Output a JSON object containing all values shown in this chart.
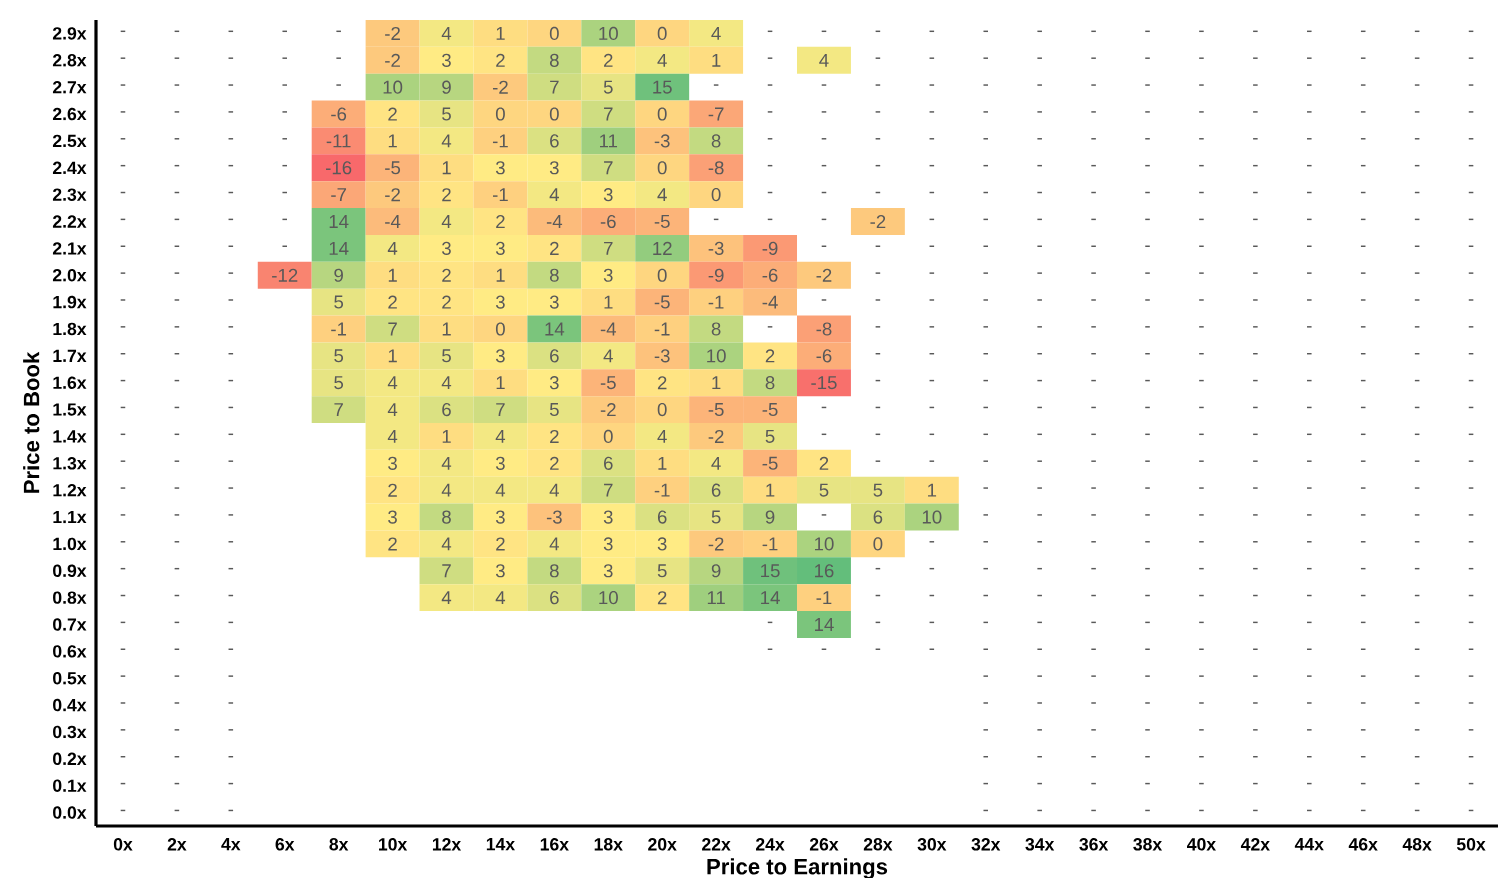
{
  "chart_data": {
    "type": "heatmap",
    "xlabel": "Price to Earnings",
    "ylabel": "Price to Book",
    "categories": [
      "0x",
      "2x",
      "4x",
      "6x",
      "8x",
      "10x",
      "12x",
      "14x",
      "16x",
      "18x",
      "20x",
      "22x",
      "24x",
      "26x",
      "28x",
      "30x",
      "32x",
      "34x",
      "36x",
      "38x",
      "40x",
      "42x",
      "44x",
      "46x",
      "48x",
      "50x"
    ],
    "y_categories": [
      "2.9x",
      "2.8x",
      "2.7x",
      "2.6x",
      "2.5x",
      "2.4x",
      "2.3x",
      "2.2x",
      "2.1x",
      "2.0x",
      "1.9x",
      "1.8x",
      "1.7x",
      "1.6x",
      "1.5x",
      "1.4x",
      "1.3x",
      "1.2x",
      "1.1x",
      "1.0x",
      "0.9x",
      "0.8x",
      "0.7x",
      "0.6x",
      "0.5x",
      "0.4x",
      "0.3x",
      "0.2x",
      "0.1x",
      "0.0x"
    ],
    "cells": [
      [
        null,
        null,
        null,
        null,
        null,
        -2,
        4,
        1,
        0,
        10,
        0,
        4,
        null,
        null,
        null,
        null,
        null,
        null,
        null,
        null,
        null,
        null,
        null,
        null,
        null,
        null
      ],
      [
        null,
        null,
        null,
        null,
        null,
        -2,
        3,
        2,
        8,
        2,
        4,
        1,
        null,
        4,
        null,
        null,
        null,
        null,
        null,
        null,
        null,
        null,
        null,
        null,
        null,
        null
      ],
      [
        null,
        null,
        null,
        null,
        null,
        10,
        9,
        -2,
        7,
        5,
        15,
        null,
        null,
        null,
        null,
        null,
        null,
        null,
        null,
        null,
        null,
        null,
        null,
        null,
        null,
        null
      ],
      [
        null,
        null,
        null,
        null,
        -6,
        2,
        5,
        0,
        0,
        7,
        0,
        -7,
        null,
        null,
        null,
        null,
        null,
        null,
        null,
        null,
        null,
        null,
        null,
        null,
        null,
        null
      ],
      [
        null,
        null,
        null,
        null,
        -11,
        1,
        4,
        -1,
        6,
        11,
        -3,
        8,
        null,
        null,
        null,
        null,
        null,
        null,
        null,
        null,
        null,
        null,
        null,
        null,
        null,
        null
      ],
      [
        null,
        null,
        null,
        null,
        -16,
        -5,
        1,
        3,
        3,
        7,
        0,
        -8,
        null,
        null,
        null,
        null,
        null,
        null,
        null,
        null,
        null,
        null,
        null,
        null,
        null,
        null
      ],
      [
        null,
        null,
        null,
        null,
        -7,
        -2,
        2,
        -1,
        4,
        3,
        4,
        0,
        null,
        null,
        null,
        null,
        null,
        null,
        null,
        null,
        null,
        null,
        null,
        null,
        null,
        null
      ],
      [
        null,
        null,
        null,
        null,
        14,
        -4,
        4,
        2,
        -4,
        -6,
        -5,
        null,
        null,
        null,
        -2,
        null,
        null,
        null,
        null,
        null,
        null,
        null,
        null,
        null,
        null,
        null
      ],
      [
        null,
        null,
        null,
        null,
        14,
        4,
        3,
        3,
        2,
        7,
        12,
        -3,
        -9,
        null,
        null,
        null,
        null,
        null,
        null,
        null,
        null,
        null,
        null,
        null,
        null,
        null
      ],
      [
        null,
        null,
        null,
        -12,
        9,
        1,
        2,
        1,
        8,
        3,
        0,
        -9,
        -6,
        -2,
        null,
        null,
        null,
        null,
        null,
        null,
        null,
        null,
        null,
        null,
        null,
        null
      ],
      [
        null,
        null,
        null,
        null,
        5,
        2,
        2,
        3,
        3,
        1,
        -5,
        -1,
        -4,
        null,
        null,
        null,
        null,
        null,
        null,
        null,
        null,
        null,
        null,
        null,
        null,
        null
      ],
      [
        null,
        null,
        null,
        null,
        -1,
        7,
        1,
        0,
        14,
        -4,
        -1,
        8,
        null,
        -8,
        null,
        null,
        null,
        null,
        null,
        null,
        null,
        null,
        null,
        null,
        null,
        null
      ],
      [
        null,
        null,
        null,
        null,
        5,
        1,
        5,
        3,
        6,
        4,
        -3,
        10,
        2,
        -6,
        null,
        null,
        null,
        null,
        null,
        null,
        null,
        null,
        null,
        null,
        null,
        null
      ],
      [
        null,
        null,
        null,
        null,
        5,
        4,
        4,
        1,
        3,
        -5,
        2,
        1,
        8,
        -15,
        null,
        null,
        null,
        null,
        null,
        null,
        null,
        null,
        null,
        null,
        null,
        null
      ],
      [
        null,
        null,
        null,
        null,
        7,
        4,
        6,
        7,
        5,
        -2,
        0,
        -5,
        -5,
        null,
        null,
        null,
        null,
        null,
        null,
        null,
        null,
        null,
        null,
        null,
        null,
        null
      ],
      [
        null,
        null,
        null,
        null,
        null,
        4,
        1,
        4,
        2,
        0,
        4,
        -2,
        5,
        null,
        null,
        null,
        null,
        null,
        null,
        null,
        null,
        null,
        null,
        null,
        null,
        null
      ],
      [
        null,
        null,
        null,
        null,
        null,
        3,
        4,
        3,
        2,
        6,
        1,
        4,
        -5,
        2,
        null,
        null,
        null,
        null,
        null,
        null,
        null,
        null,
        null,
        null,
        null,
        null
      ],
      [
        null,
        null,
        null,
        null,
        null,
        2,
        4,
        4,
        4,
        7,
        -1,
        6,
        1,
        5,
        5,
        1,
        null,
        null,
        null,
        null,
        null,
        null,
        null,
        null,
        null,
        null
      ],
      [
        null,
        null,
        null,
        null,
        null,
        3,
        8,
        3,
        -3,
        3,
        6,
        5,
        9,
        null,
        6,
        10,
        null,
        null,
        null,
        null,
        null,
        null,
        null,
        null,
        null,
        null
      ],
      [
        null,
        null,
        null,
        null,
        null,
        2,
        4,
        2,
        4,
        3,
        3,
        -2,
        -1,
        10,
        0,
        null,
        null,
        null,
        null,
        null,
        null,
        null,
        null,
        null,
        null,
        null
      ],
      [
        null,
        null,
        null,
        null,
        null,
        null,
        7,
        3,
        8,
        3,
        5,
        9,
        15,
        16,
        null,
        null,
        null,
        null,
        null,
        null,
        null,
        null,
        null,
        null,
        null,
        null
      ],
      [
        null,
        null,
        null,
        null,
        null,
        null,
        4,
        4,
        6,
        10,
        2,
        11,
        14,
        -1,
        null,
        null,
        null,
        null,
        null,
        null,
        null,
        null,
        null,
        null,
        null,
        null
      ],
      [
        null,
        null,
        null,
        null,
        null,
        null,
        null,
        null,
        null,
        null,
        null,
        null,
        null,
        14,
        null,
        null,
        null,
        null,
        null,
        null,
        null,
        null,
        null,
        null,
        null,
        null
      ],
      [
        null,
        null,
        null,
        null,
        null,
        null,
        null,
        null,
        null,
        null,
        null,
        null,
        null,
        null,
        null,
        null,
        null,
        null,
        null,
        null,
        null,
        null,
        null,
        null,
        null,
        null
      ],
      [
        null,
        null,
        null,
        null,
        null,
        null,
        null,
        null,
        null,
        null,
        null,
        null,
        null,
        null,
        null,
        null,
        null,
        null,
        null,
        null,
        null,
        null,
        null,
        null,
        null,
        null
      ],
      [
        null,
        null,
        null,
        null,
        null,
        null,
        null,
        null,
        null,
        null,
        null,
        null,
        null,
        null,
        null,
        null,
        null,
        null,
        null,
        null,
        null,
        null,
        null,
        null,
        null,
        null
      ],
      [
        null,
        null,
        null,
        null,
        null,
        null,
        null,
        null,
        null,
        null,
        null,
        null,
        null,
        null,
        null,
        null,
        null,
        null,
        null,
        null,
        null,
        null,
        null,
        null,
        null,
        null
      ],
      [
        null,
        null,
        null,
        null,
        null,
        null,
        null,
        null,
        null,
        null,
        null,
        null,
        null,
        null,
        null,
        null,
        null,
        null,
        null,
        null,
        null,
        null,
        null,
        null,
        null,
        null
      ],
      [
        null,
        null,
        null,
        null,
        null,
        null,
        null,
        null,
        null,
        null,
        null,
        null,
        null,
        null,
        null,
        null,
        null,
        null,
        null,
        null,
        null,
        null,
        null,
        null,
        null,
        null
      ],
      [
        null,
        null,
        null,
        null,
        null,
        null,
        null,
        null,
        null,
        null,
        null,
        null,
        null,
        null,
        null,
        null,
        null,
        null,
        null,
        null,
        null,
        null,
        null,
        null,
        null,
        null
      ]
    ],
    "cell_labels": [
      [
        "-",
        "-",
        "-",
        "-",
        "-",
        "-2",
        "4",
        "1",
        "0",
        "10",
        "0",
        "4",
        "-",
        "-",
        "-",
        "-",
        "-",
        "-",
        "-",
        "-",
        "-",
        "-",
        "-",
        "-",
        "-",
        "-"
      ],
      [
        "-",
        "-",
        "-",
        "-",
        "-",
        "-2",
        "3",
        "2",
        "8",
        "2",
        "4",
        "1",
        "-",
        "4",
        "-",
        "-",
        "-",
        "-",
        "-",
        "-",
        "-",
        "-",
        "-",
        "-",
        "-",
        "-"
      ],
      [
        "-",
        "-",
        "-",
        "-",
        "-",
        "10",
        "9",
        "-2",
        "7",
        "5",
        "15",
        "-",
        "-",
        "-",
        "-",
        "-",
        "-",
        "-",
        "-",
        "-",
        "-",
        "-",
        "-",
        "-",
        "-",
        "-"
      ],
      [
        "-",
        "-",
        "-",
        "-",
        "-6",
        "2",
        "5",
        "0",
        "0",
        "7",
        "0",
        "-7",
        "-",
        "-",
        "-",
        "-",
        "-",
        "-",
        "-",
        "-",
        "-",
        "-",
        "-",
        "-",
        "-",
        "-"
      ],
      [
        "-",
        "-",
        "-",
        "-",
        "-11",
        "1",
        "4",
        "-1",
        "6",
        "11",
        "-3",
        "8",
        "-",
        "-",
        "-",
        "-",
        "-",
        "-",
        "-",
        "-",
        "-",
        "-",
        "-",
        "-",
        "-",
        "-"
      ],
      [
        "-",
        "-",
        "-",
        "-",
        "-16",
        "-5",
        "1",
        "3",
        "3",
        "7",
        "0",
        "-8",
        "-",
        "-",
        "-",
        "-",
        "-",
        "-",
        "-",
        "-",
        "-",
        "-",
        "-",
        "-",
        "-",
        "-"
      ],
      [
        "-",
        "-",
        "-",
        "-",
        "-7",
        "-2",
        "2",
        "-1",
        "4",
        "3",
        "4",
        "0",
        "-",
        "-",
        "-",
        "-",
        "-",
        "-",
        "-",
        "-",
        "-",
        "-",
        "-",
        "-",
        "-",
        "-"
      ],
      [
        "-",
        "-",
        "-",
        "-",
        "14",
        "-4",
        "4",
        "2",
        "-4",
        "-6",
        "-5",
        "-",
        "-",
        "-",
        "-2",
        "-",
        "-",
        "-",
        "-",
        "-",
        "-",
        "-",
        "-",
        "-",
        "-",
        "-"
      ],
      [
        "-",
        "-",
        "-",
        "-",
        "14",
        "4",
        "3",
        "3",
        "2",
        "7",
        "12",
        "-3",
        "-9",
        "-",
        "-",
        "-",
        "-",
        "-",
        "-",
        "-",
        "-",
        "-",
        "-",
        "-",
        "-",
        "-"
      ],
      [
        "-",
        "-",
        "-",
        "-12",
        "9",
        "1",
        "2",
        "1",
        "8",
        "3",
        "0",
        "-9",
        "-6",
        "-2",
        "-",
        "-",
        "-",
        "-",
        "-",
        "-",
        "-",
        "-",
        "-",
        "-",
        "-",
        "-"
      ],
      [
        "-",
        "-",
        "-",
        null,
        "5",
        "2",
        "2",
        "3",
        "3",
        "1",
        "-5",
        "-1",
        "-4",
        "-",
        "-",
        "-",
        "-",
        "-",
        "-",
        "-",
        "-",
        "-",
        "-",
        "-",
        "-",
        "-"
      ],
      [
        "-",
        "-",
        "-",
        null,
        "-1",
        "7",
        "1",
        "0",
        "14",
        "-4",
        "-1",
        "8",
        "-",
        "-8",
        "-",
        "-",
        "-",
        "-",
        "-",
        "-",
        "-",
        "-",
        "-",
        "-",
        "-",
        "-"
      ],
      [
        "-",
        "-",
        "-",
        null,
        "5",
        "1",
        "5",
        "3",
        "6",
        "4",
        "-3",
        "10",
        "2",
        "-6",
        "-",
        "-",
        "-",
        "-",
        "-",
        "-",
        "-",
        "-",
        "-",
        "-",
        "-",
        "-"
      ],
      [
        "-",
        "-",
        "-",
        null,
        "5",
        "4",
        "4",
        "1",
        "3",
        "-5",
        "2",
        "1",
        "8",
        "-15",
        "-",
        "-",
        "-",
        "-",
        "-",
        "-",
        "-",
        "-",
        "-",
        "-",
        "-",
        "-"
      ],
      [
        "-",
        "-",
        "-",
        null,
        "7",
        "4",
        "6",
        "7",
        "5",
        "-2",
        "0",
        "-5",
        "-5",
        "-",
        "-",
        "-",
        "-",
        "-",
        "-",
        "-",
        "-",
        "-",
        "-",
        "-",
        "-",
        "-"
      ],
      [
        "-",
        "-",
        "-",
        null,
        null,
        "4",
        "1",
        "4",
        "2",
        "0",
        "4",
        "-2",
        "5",
        "-",
        "-",
        "-",
        "-",
        "-",
        "-",
        "-",
        "-",
        "-",
        "-",
        "-",
        "-",
        "-"
      ],
      [
        "-",
        "-",
        "-",
        null,
        null,
        "3",
        "4",
        "3",
        "2",
        "6",
        "1",
        "4",
        "-5",
        "2",
        "-",
        "-",
        "-",
        "-",
        "-",
        "-",
        "-",
        "-",
        "-",
        "-",
        "-",
        "-"
      ],
      [
        "-",
        "-",
        "-",
        null,
        null,
        "2",
        "4",
        "4",
        "4",
        "7",
        "-1",
        "6",
        "1",
        "5",
        "5",
        "1",
        "-",
        "-",
        "-",
        "-",
        "-",
        "-",
        "-",
        "-",
        "-",
        "-"
      ],
      [
        "-",
        "-",
        "-",
        null,
        null,
        "3",
        "8",
        "3",
        "-3",
        "3",
        "6",
        "5",
        "9",
        "-",
        "6",
        "10",
        "-",
        "-",
        "-",
        "-",
        "-",
        "-",
        "-",
        "-",
        "-",
        "-"
      ],
      [
        "-",
        "-",
        "-",
        null,
        null,
        "2",
        "4",
        "2",
        "4",
        "3",
        "3",
        "-2",
        "-1",
        "10",
        "0",
        "-",
        "-",
        "-",
        "-",
        "-",
        "-",
        "-",
        "-",
        "-",
        "-",
        "-"
      ],
      [
        "-",
        "-",
        "-",
        null,
        null,
        null,
        "7",
        "3",
        "8",
        "3",
        "5",
        "9",
        "15",
        "16",
        "-",
        "-",
        "-",
        "-",
        "-",
        "-",
        "-",
        "-",
        "-",
        "-",
        "-",
        "-"
      ],
      [
        "-",
        "-",
        "-",
        null,
        null,
        null,
        "4",
        "4",
        "6",
        "10",
        "2",
        "11",
        "14",
        "-1",
        "-",
        "-",
        "-",
        "-",
        "-",
        "-",
        "-",
        "-",
        "-",
        "-",
        "-",
        "-"
      ],
      [
        "-",
        "-",
        "-",
        null,
        null,
        null,
        null,
        null,
        null,
        null,
        null,
        null,
        "-",
        "14",
        "-",
        "-",
        "-",
        "-",
        "-",
        "-",
        "-",
        "-",
        "-",
        "-",
        "-",
        "-"
      ],
      [
        "-",
        "-",
        "-",
        null,
        null,
        null,
        null,
        null,
        null,
        null,
        null,
        null,
        "-",
        "-",
        "-",
        "-",
        "-",
        "-",
        "-",
        "-",
        "-",
        "-",
        "-",
        "-",
        "-",
        "-"
      ],
      [
        "-",
        "-",
        "-",
        null,
        null,
        null,
        null,
        null,
        null,
        null,
        null,
        null,
        null,
        null,
        null,
        null,
        "-",
        "-",
        "-",
        "-",
        "-",
        "-",
        "-",
        "-",
        "-",
        "-"
      ],
      [
        "-",
        "-",
        "-",
        null,
        null,
        null,
        null,
        null,
        null,
        null,
        null,
        null,
        null,
        null,
        null,
        null,
        "-",
        "-",
        "-",
        "-",
        "-",
        "-",
        "-",
        "-",
        "-",
        "-"
      ],
      [
        "-",
        "-",
        "-",
        null,
        null,
        null,
        null,
        null,
        null,
        null,
        null,
        null,
        null,
        null,
        null,
        null,
        "-",
        "-",
        "-",
        "-",
        "-",
        "-",
        "-",
        "-",
        "-",
        "-"
      ],
      [
        "-",
        "-",
        "-",
        null,
        null,
        null,
        null,
        null,
        null,
        null,
        null,
        null,
        null,
        null,
        null,
        null,
        "-",
        "-",
        "-",
        "-",
        "-",
        "-",
        "-",
        "-",
        "-",
        "-"
      ],
      [
        "-",
        "-",
        "-",
        null,
        null,
        null,
        null,
        null,
        null,
        null,
        null,
        null,
        null,
        null,
        null,
        null,
        "-",
        "-",
        "-",
        "-",
        "-",
        "-",
        "-",
        "-",
        "-",
        "-"
      ],
      [
        "-",
        "-",
        "-",
        null,
        null,
        null,
        null,
        null,
        null,
        null,
        null,
        null,
        null,
        null,
        null,
        null,
        "-",
        "-",
        "-",
        "-",
        "-",
        "-",
        "-",
        "-",
        "-",
        "-"
      ]
    ]
  }
}
